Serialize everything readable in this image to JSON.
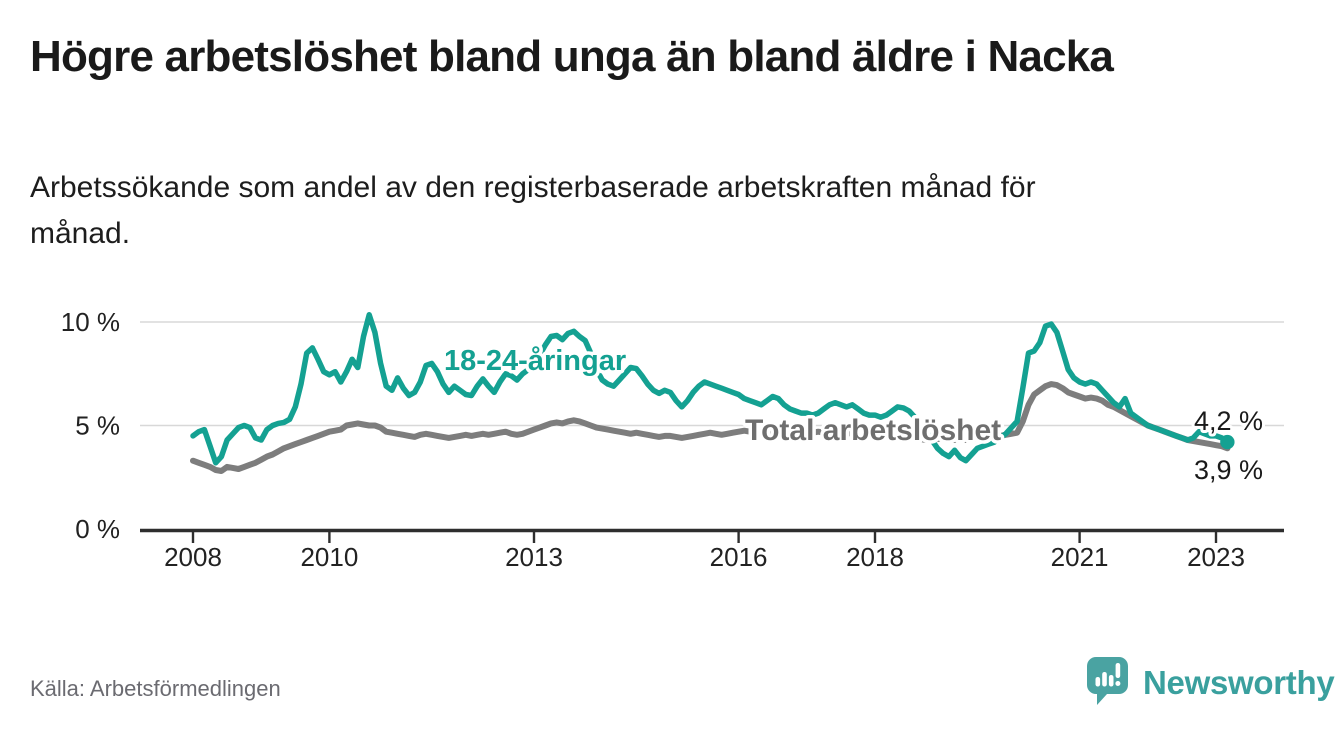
{
  "header": {
    "title": "Högre arbetslöshet bland unga än bland äldre i Nacka",
    "subtitle_lines": [
      "Arbetssökande som andel av den registerbaserade arbetskraften månad för",
      "månad."
    ]
  },
  "footer": {
    "source": "Källa: Arbetsförmedlingen",
    "logo_text": "Newsworthy"
  },
  "colors": {
    "youth_line": "#14a192",
    "total_line": "#7d7d7d",
    "total_label": "#6e6e6e",
    "grid": "#d8d8d8",
    "axis": "#2e2e2e",
    "value_label": "#1a1a1a",
    "logo_icon": "#4aa3a2",
    "logo_text": "#3aa09e"
  },
  "chart_data": {
    "type": "line",
    "title": "Högre arbetslöshet bland unga än bland äldre i Nacka",
    "subtitle": "Arbetssökande som andel av den registerbaserade arbetskraften månad för månad.",
    "unit": "%",
    "frequency": "monthly",
    "grid": "horizontal-only",
    "legend_position": "inline-labels-on-lines",
    "x_axis": {
      "start_year": 2008,
      "start_month": 1,
      "end_label_period": "2023-03",
      "ticks": [
        {
          "year": 2008,
          "label": "2008"
        },
        {
          "year": 2010,
          "label": "2010"
        },
        {
          "year": 2013,
          "label": "2013"
        },
        {
          "year": 2016,
          "label": "2016"
        },
        {
          "year": 2018,
          "label": "2018"
        },
        {
          "year": 2021,
          "label": "2021"
        },
        {
          "year": 2023,
          "label": "2023"
        }
      ]
    },
    "y_axis": {
      "ticks": [
        {
          "value": 0,
          "label": "0 %"
        },
        {
          "value": 5,
          "label": "5 %"
        },
        {
          "value": 10,
          "label": "10 %"
        }
      ],
      "ylim": [
        0,
        10.8
      ]
    },
    "series": [
      {
        "name": "18-24-åringar",
        "color": "#14a192",
        "end_label": "4,2 %",
        "end_value": 4.2,
        "values": [
          4.5,
          4.7,
          4.8,
          4.0,
          3.2,
          3.5,
          4.3,
          4.6,
          4.9,
          5.0,
          4.9,
          4.4,
          4.3,
          4.8,
          5.0,
          5.1,
          5.15,
          5.3,
          5.9,
          7.0,
          8.5,
          8.75,
          8.2,
          7.6,
          7.45,
          7.6,
          7.1,
          7.6,
          8.2,
          7.8,
          9.3,
          10.35,
          9.5,
          8.0,
          6.9,
          6.7,
          7.3,
          6.8,
          6.45,
          6.6,
          7.1,
          7.9,
          8.0,
          7.6,
          7.0,
          6.6,
          6.9,
          6.7,
          6.5,
          6.45,
          6.9,
          7.25,
          6.9,
          6.6,
          7.1,
          7.5,
          7.4,
          7.2,
          7.5,
          7.7,
          8.0,
          8.4,
          8.9,
          9.3,
          9.35,
          9.15,
          9.45,
          9.55,
          9.3,
          9.1,
          8.5,
          7.7,
          7.2,
          7.0,
          6.9,
          7.2,
          7.5,
          7.8,
          7.75,
          7.4,
          7.0,
          6.7,
          6.55,
          6.7,
          6.6,
          6.2,
          5.9,
          6.2,
          6.6,
          6.9,
          7.1,
          7.0,
          6.9,
          6.8,
          6.7,
          6.6,
          6.5,
          6.3,
          6.2,
          6.1,
          6.0,
          6.2,
          6.4,
          6.3,
          6.0,
          5.8,
          5.7,
          5.6,
          5.6,
          5.5,
          5.6,
          5.8,
          6.0,
          6.1,
          6.0,
          5.9,
          6.0,
          5.8,
          5.6,
          5.5,
          5.5,
          5.4,
          5.5,
          5.7,
          5.9,
          5.85,
          5.7,
          5.4,
          5.1,
          4.7,
          4.3,
          3.9,
          3.65,
          3.5,
          3.8,
          3.45,
          3.3,
          3.6,
          3.9,
          4.0,
          4.1,
          4.2,
          4.4,
          4.6,
          4.9,
          5.2,
          6.8,
          8.5,
          8.6,
          9.0,
          9.8,
          9.9,
          9.5,
          8.6,
          7.7,
          7.3,
          7.1,
          7.0,
          7.1,
          7.0,
          6.7,
          6.4,
          6.1,
          5.9,
          6.3,
          5.6,
          5.4,
          5.2,
          5.0,
          4.9,
          4.8,
          4.7,
          4.6,
          4.5,
          4.4,
          4.3,
          4.4,
          4.7,
          4.6,
          4.5,
          4.5,
          4.4,
          4.2
        ]
      },
      {
        "name": "Total arbetslöshet",
        "color": "#7d7d7d",
        "end_label": "3,9 %",
        "end_value": 3.9,
        "values": [
          3.3,
          3.2,
          3.1,
          3.0,
          2.85,
          2.8,
          3.0,
          2.95,
          2.9,
          3.0,
          3.1,
          3.2,
          3.35,
          3.5,
          3.6,
          3.75,
          3.9,
          4.0,
          4.1,
          4.2,
          4.3,
          4.4,
          4.5,
          4.6,
          4.7,
          4.75,
          4.8,
          5.0,
          5.05,
          5.1,
          5.05,
          5.0,
          5.0,
          4.9,
          4.7,
          4.65,
          4.6,
          4.55,
          4.5,
          4.45,
          4.55,
          4.6,
          4.55,
          4.5,
          4.45,
          4.4,
          4.45,
          4.5,
          4.55,
          4.5,
          4.55,
          4.6,
          4.55,
          4.6,
          4.65,
          4.7,
          4.6,
          4.55,
          4.6,
          4.7,
          4.8,
          4.9,
          5.0,
          5.1,
          5.15,
          5.1,
          5.2,
          5.25,
          5.2,
          5.1,
          5.0,
          4.9,
          4.85,
          4.8,
          4.75,
          4.7,
          4.65,
          4.6,
          4.65,
          4.6,
          4.55,
          4.5,
          4.45,
          4.5,
          4.5,
          4.45,
          4.4,
          4.45,
          4.5,
          4.55,
          4.6,
          4.65,
          4.6,
          4.55,
          4.6,
          4.65,
          4.7,
          4.75,
          4.7,
          4.65,
          4.6,
          4.65,
          4.7,
          4.75,
          4.7,
          4.65,
          4.6,
          4.55,
          4.6,
          4.65,
          4.7,
          4.65,
          4.6,
          4.65,
          4.7,
          4.65,
          4.6,
          4.55,
          4.5,
          4.5,
          4.55,
          4.5,
          4.45,
          4.5,
          4.55,
          4.5,
          4.45,
          4.4,
          4.35,
          4.3,
          4.3,
          4.35,
          4.4,
          4.35,
          4.3,
          4.35,
          4.3,
          4.35,
          4.4,
          4.45,
          4.4,
          4.45,
          4.5,
          4.55,
          4.6,
          4.65,
          5.2,
          6.0,
          6.5,
          6.7,
          6.9,
          7.0,
          6.95,
          6.8,
          6.6,
          6.5,
          6.4,
          6.3,
          6.35,
          6.3,
          6.2,
          6.0,
          5.9,
          5.75,
          5.6,
          5.45,
          5.3,
          5.15,
          5.0,
          4.9,
          4.8,
          4.7,
          4.6,
          4.5,
          4.4,
          4.3,
          4.25,
          4.2,
          4.15,
          4.1,
          4.05,
          4.0,
          3.9
        ]
      }
    ]
  }
}
